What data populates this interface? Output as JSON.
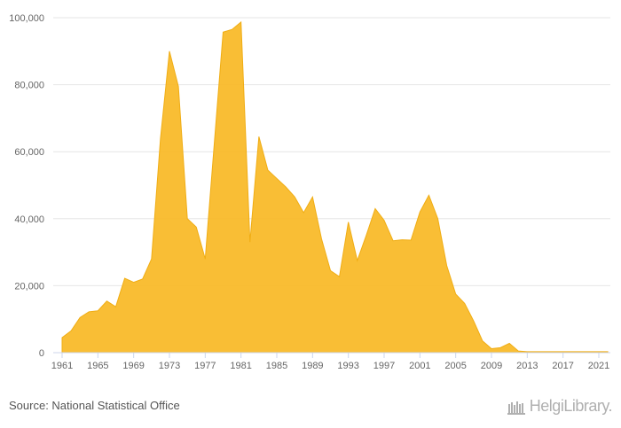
{
  "chart_data": {
    "type": "area",
    "title": "",
    "xlabel": "",
    "ylabel": "",
    "ylim": [
      0,
      100000
    ],
    "xlim": [
      1961,
      2022
    ],
    "grid": true,
    "y_ticks": [
      0,
      20000,
      40000,
      60000,
      80000,
      100000
    ],
    "y_tick_labels": [
      "0",
      "20,000",
      "40,000",
      "60,000",
      "80,000",
      "100,000"
    ],
    "x_ticks": [
      1961,
      1965,
      1969,
      1973,
      1977,
      1981,
      1985,
      1989,
      1993,
      1997,
      2001,
      2005,
      2009,
      2013,
      2017,
      2021
    ],
    "x": [
      1961,
      1962,
      1963,
      1964,
      1965,
      1966,
      1967,
      1968,
      1969,
      1970,
      1971,
      1972,
      1973,
      1974,
      1975,
      1976,
      1977,
      1978,
      1979,
      1980,
      1981,
      1982,
      1983,
      1984,
      1985,
      1986,
      1987,
      1988,
      1989,
      1990,
      1991,
      1992,
      1993,
      1994,
      1995,
      1996,
      1997,
      1998,
      1999,
      2000,
      2001,
      2002,
      2003,
      2004,
      2005,
      2006,
      2007,
      2008,
      2009,
      2010,
      2011,
      2012,
      2013,
      2014,
      2015,
      2016,
      2017,
      2018,
      2019,
      2020,
      2021,
      2022
    ],
    "values": [
      4500,
      6500,
      10500,
      12200,
      12500,
      15400,
      13700,
      22200,
      21000,
      22000,
      28000,
      64000,
      90000,
      79500,
      40000,
      37500,
      28000,
      62000,
      95700,
      96500,
      98700,
      33000,
      64500,
      54500,
      52000,
      49500,
      46500,
      41800,
      46500,
      34000,
      24500,
      22700,
      39000,
      27500,
      35000,
      43000,
      39500,
      33400,
      33700,
      33600,
      42000,
      47000,
      40000,
      26000,
      17500,
      14700,
      9500,
      3500,
      1200,
      1500,
      2800,
      500,
      300,
      300,
      300,
      300,
      300,
      300,
      300,
      300,
      300,
      300
    ],
    "color": "#f9b824"
  },
  "footer": {
    "source": "Source: National Statistical Office",
    "brand": "HelgiLibrary."
  }
}
